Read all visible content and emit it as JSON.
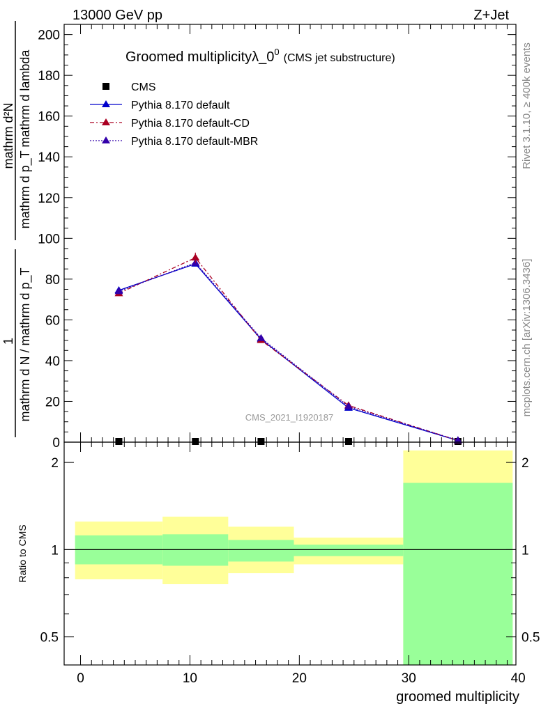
{
  "header": {
    "left": "13000 GeV pp",
    "right": "Z+Jet"
  },
  "side": {
    "rivet": "Rivet 3.1.10, ≥ 400k events",
    "mcplots": "mcplots.cern.ch [arXiv:1306.3436]"
  },
  "colors": {
    "cms": "#000000",
    "default": "#0000cc",
    "cd": "#aa0022",
    "mbr": "#3300aa",
    "band_inner": "#99ff99",
    "band_outer": "#ffff99"
  },
  "chart_data": [
    {
      "type": "line",
      "title": "Groomed multiplicityλ_0",
      "title_sup": "0",
      "subtitle": "(CMS jet substructure)",
      "watermark": "CMS_2021_I1920187",
      "ylabel_num_top": "1",
      "ylabel_den": "mathrm d N / mathrm d p_T",
      "ylabel_num_right": "mathrm d²N",
      "ylabel_den_right": "mathrm d p_T mathrm d lambda",
      "xlim": [
        -1.5,
        39.8
      ],
      "ylim": [
        0,
        205
      ],
      "yticks": [
        0,
        20,
        40,
        60,
        80,
        100,
        120,
        140,
        160,
        180,
        200
      ],
      "grid": false,
      "legend_position": "top-left",
      "series": [
        {
          "name": "CMS",
          "marker": "square",
          "x": [
            3.5,
            10.5,
            16.5,
            24.5,
            34.5
          ],
          "values": [
            0,
            0,
            0,
            0,
            0
          ]
        },
        {
          "name": "Pythia 8.170 default",
          "marker": "triangle",
          "x": [
            3.5,
            10.5,
            16.5,
            24.5,
            34.5
          ],
          "values": [
            74.5,
            87.5,
            50.5,
            16.8,
            0.8
          ]
        },
        {
          "name": "Pythia 8.170 default-CD",
          "marker": "triangle",
          "x": [
            3.5,
            10.5,
            16.5,
            24.5,
            34.5
          ],
          "values": [
            73.0,
            90.5,
            50.0,
            18.0,
            0.8
          ]
        },
        {
          "name": "Pythia 8.170 default-MBR",
          "marker": "triangle",
          "x": [
            3.5,
            10.5,
            16.5,
            24.5,
            34.5
          ],
          "values": [
            74.0,
            88.0,
            51.0,
            17.5,
            0.9
          ]
        }
      ]
    },
    {
      "type": "area",
      "ylabel": "Ratio to CMS",
      "xlabel": "groomed multiplicity",
      "xlim": [
        -1.5,
        39.8
      ],
      "ylim": [
        0.4,
        2.35
      ],
      "log_y": true,
      "xticks": [
        0,
        10,
        20,
        30,
        40
      ],
      "yticks": [
        0.5,
        1,
        2
      ],
      "reference_line": 1,
      "bins": [
        {
          "lo": -0.5,
          "hi": 7.5,
          "inner": [
            0.89,
            1.12
          ],
          "outer": [
            0.79,
            1.25
          ]
        },
        {
          "lo": 7.5,
          "hi": 13.5,
          "inner": [
            0.88,
            1.13
          ],
          "outer": [
            0.76,
            1.3
          ]
        },
        {
          "lo": 13.5,
          "hi": 19.5,
          "inner": [
            0.91,
            1.08
          ],
          "outer": [
            0.83,
            1.2
          ]
        },
        {
          "lo": 19.5,
          "hi": 29.5,
          "inner": [
            0.95,
            1.04
          ],
          "outer": [
            0.89,
            1.1
          ]
        },
        {
          "lo": 29.5,
          "hi": 39.5,
          "inner": [
            0.35,
            1.7
          ],
          "outer": [
            0.35,
            2.2
          ]
        }
      ]
    }
  ]
}
